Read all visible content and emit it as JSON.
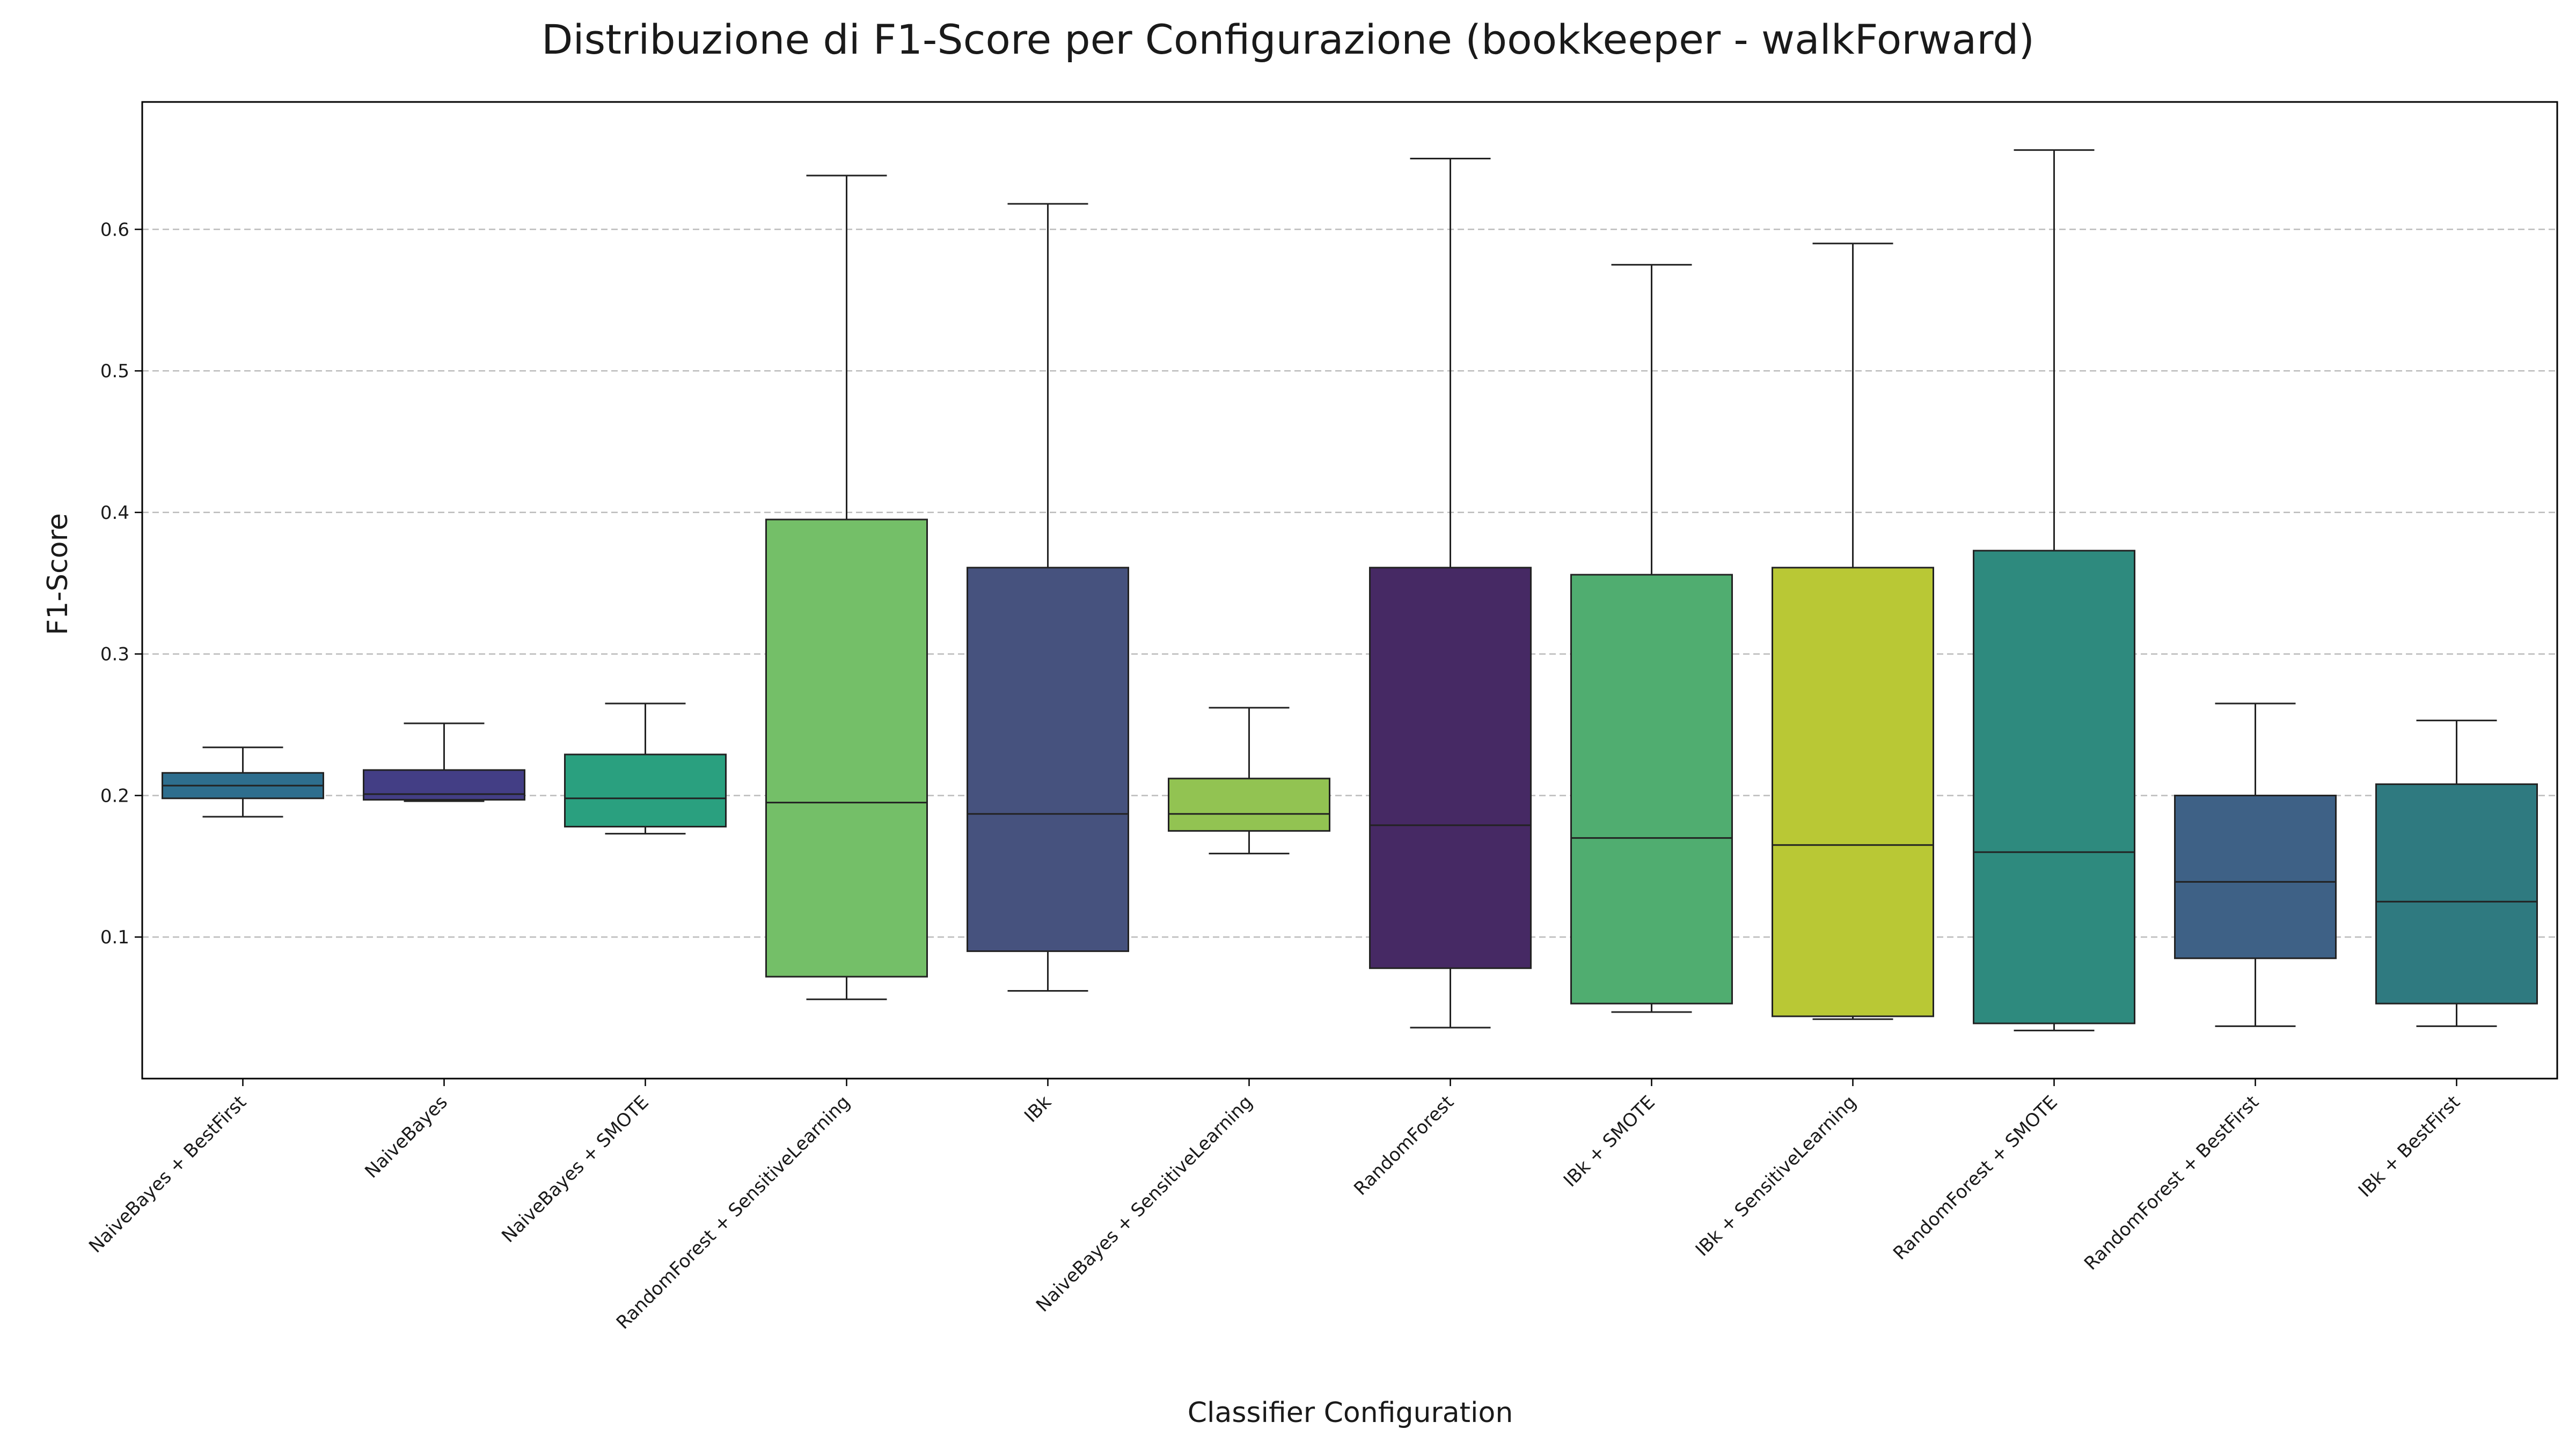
{
  "chart_data": {
    "type": "box",
    "title": "Distribuzione di F1-Score per Configurazione (bookkeeper - walkForward)",
    "xlabel": "Classifier Configuration",
    "ylabel": "F1-Score",
    "ylim": [
      0,
      0.69
    ],
    "yticks": [
      "0.1",
      "0.2",
      "0.3",
      "0.4",
      "0.5",
      "0.6"
    ],
    "grid": "y dashed",
    "legend": "none",
    "boxes": [
      {
        "label": "NaiveBayes + BestFirst",
        "color": "#2e6e8e",
        "whisker_low": 0.185,
        "q1": 0.198,
        "median": 0.207,
        "q3": 0.216,
        "whisker_high": 0.234
      },
      {
        "label": "NaiveBayes",
        "color": "#433e85",
        "whisker_low": 0.196,
        "q1": 0.197,
        "median": 0.201,
        "q3": 0.218,
        "whisker_high": 0.251
      },
      {
        "label": "NaiveBayes + SMOTE",
        "color": "#2aa07f",
        "whisker_low": 0.173,
        "q1": 0.178,
        "median": 0.198,
        "q3": 0.229,
        "whisker_high": 0.265
      },
      {
        "label": "RandomForest + SensitiveLearning",
        "color": "#74bf68",
        "whisker_low": 0.056,
        "q1": 0.072,
        "median": 0.195,
        "q3": 0.395,
        "whisker_high": 0.638
      },
      {
        "label": "IBk",
        "color": "#46527e",
        "whisker_low": 0.062,
        "q1": 0.09,
        "median": 0.187,
        "q3": 0.361,
        "whisker_high": 0.618
      },
      {
        "label": "NaiveBayes + SensitiveLearning",
        "color": "#92c352",
        "whisker_low": 0.159,
        "q1": 0.175,
        "median": 0.187,
        "q3": 0.212,
        "whisker_high": 0.262
      },
      {
        "label": "RandomForest",
        "color": "#462964",
        "whisker_low": 0.036,
        "q1": 0.078,
        "median": 0.179,
        "q3": 0.361,
        "whisker_high": 0.65
      },
      {
        "label": "IBk + SMOTE",
        "color": "#50ad70",
        "whisker_low": 0.047,
        "q1": 0.053,
        "median": 0.17,
        "q3": 0.356,
        "whisker_high": 0.575
      },
      {
        "label": "IBk + SensitiveLearning",
        "color": "#b9c835",
        "whisker_low": 0.042,
        "q1": 0.044,
        "median": 0.165,
        "q3": 0.361,
        "whisker_high": 0.59
      },
      {
        "label": "RandomForest + SMOTE",
        "color": "#2e8a7e",
        "whisker_low": 0.034,
        "q1": 0.039,
        "median": 0.16,
        "q3": 0.373,
        "whisker_high": 0.656
      },
      {
        "label": "RandomForest + BestFirst",
        "color": "#3e6186",
        "whisker_low": 0.037,
        "q1": 0.085,
        "median": 0.139,
        "q3": 0.2,
        "whisker_high": 0.265
      },
      {
        "label": "IBk + BestFirst",
        "color": "#2f7a80",
        "whisker_low": 0.037,
        "q1": 0.053,
        "median": 0.125,
        "q3": 0.208,
        "whisker_high": 0.253
      }
    ]
  }
}
